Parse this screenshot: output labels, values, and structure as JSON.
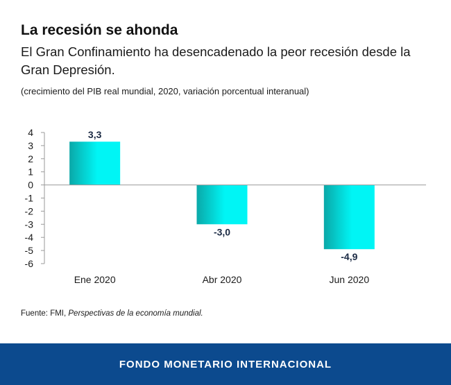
{
  "header": {
    "title": "La recesión se ahonda",
    "subtitle": "El Gran Confinamiento ha desencadenado la peor recesión desde la Gran Depresión.",
    "note": "(crecimiento del PIB real mundial, 2020, variación porcentual interanual)"
  },
  "chart_data": {
    "type": "bar",
    "categories": [
      "Ene 2020",
      "Abr 2020",
      "Jun 2020"
    ],
    "values": [
      3.3,
      -3.0,
      -4.9
    ],
    "value_labels": [
      "3,3",
      "-3,0",
      "-4,9"
    ],
    "ylim": [
      -6,
      4
    ],
    "yticks": [
      4,
      3,
      2,
      1,
      0,
      -1,
      -2,
      -3,
      -4,
      -5,
      -6
    ],
    "ytick_labels": [
      "4",
      "3",
      "2",
      "1",
      "0",
      "-1",
      "-2",
      "-3",
      "-4",
      "-5",
      "-6"
    ],
    "grid": false,
    "bar_gradient": [
      "#0aa8a8",
      "#00f5f5"
    ],
    "label_color": "#1b2a44"
  },
  "source": {
    "prefix": "Fuente: FMI, ",
    "publication": "Perspectivas de la economía mundial."
  },
  "footer": {
    "org": "FONDO MONETARIO INTERNACIONAL",
    "bg_color": "#0c4a8e"
  }
}
